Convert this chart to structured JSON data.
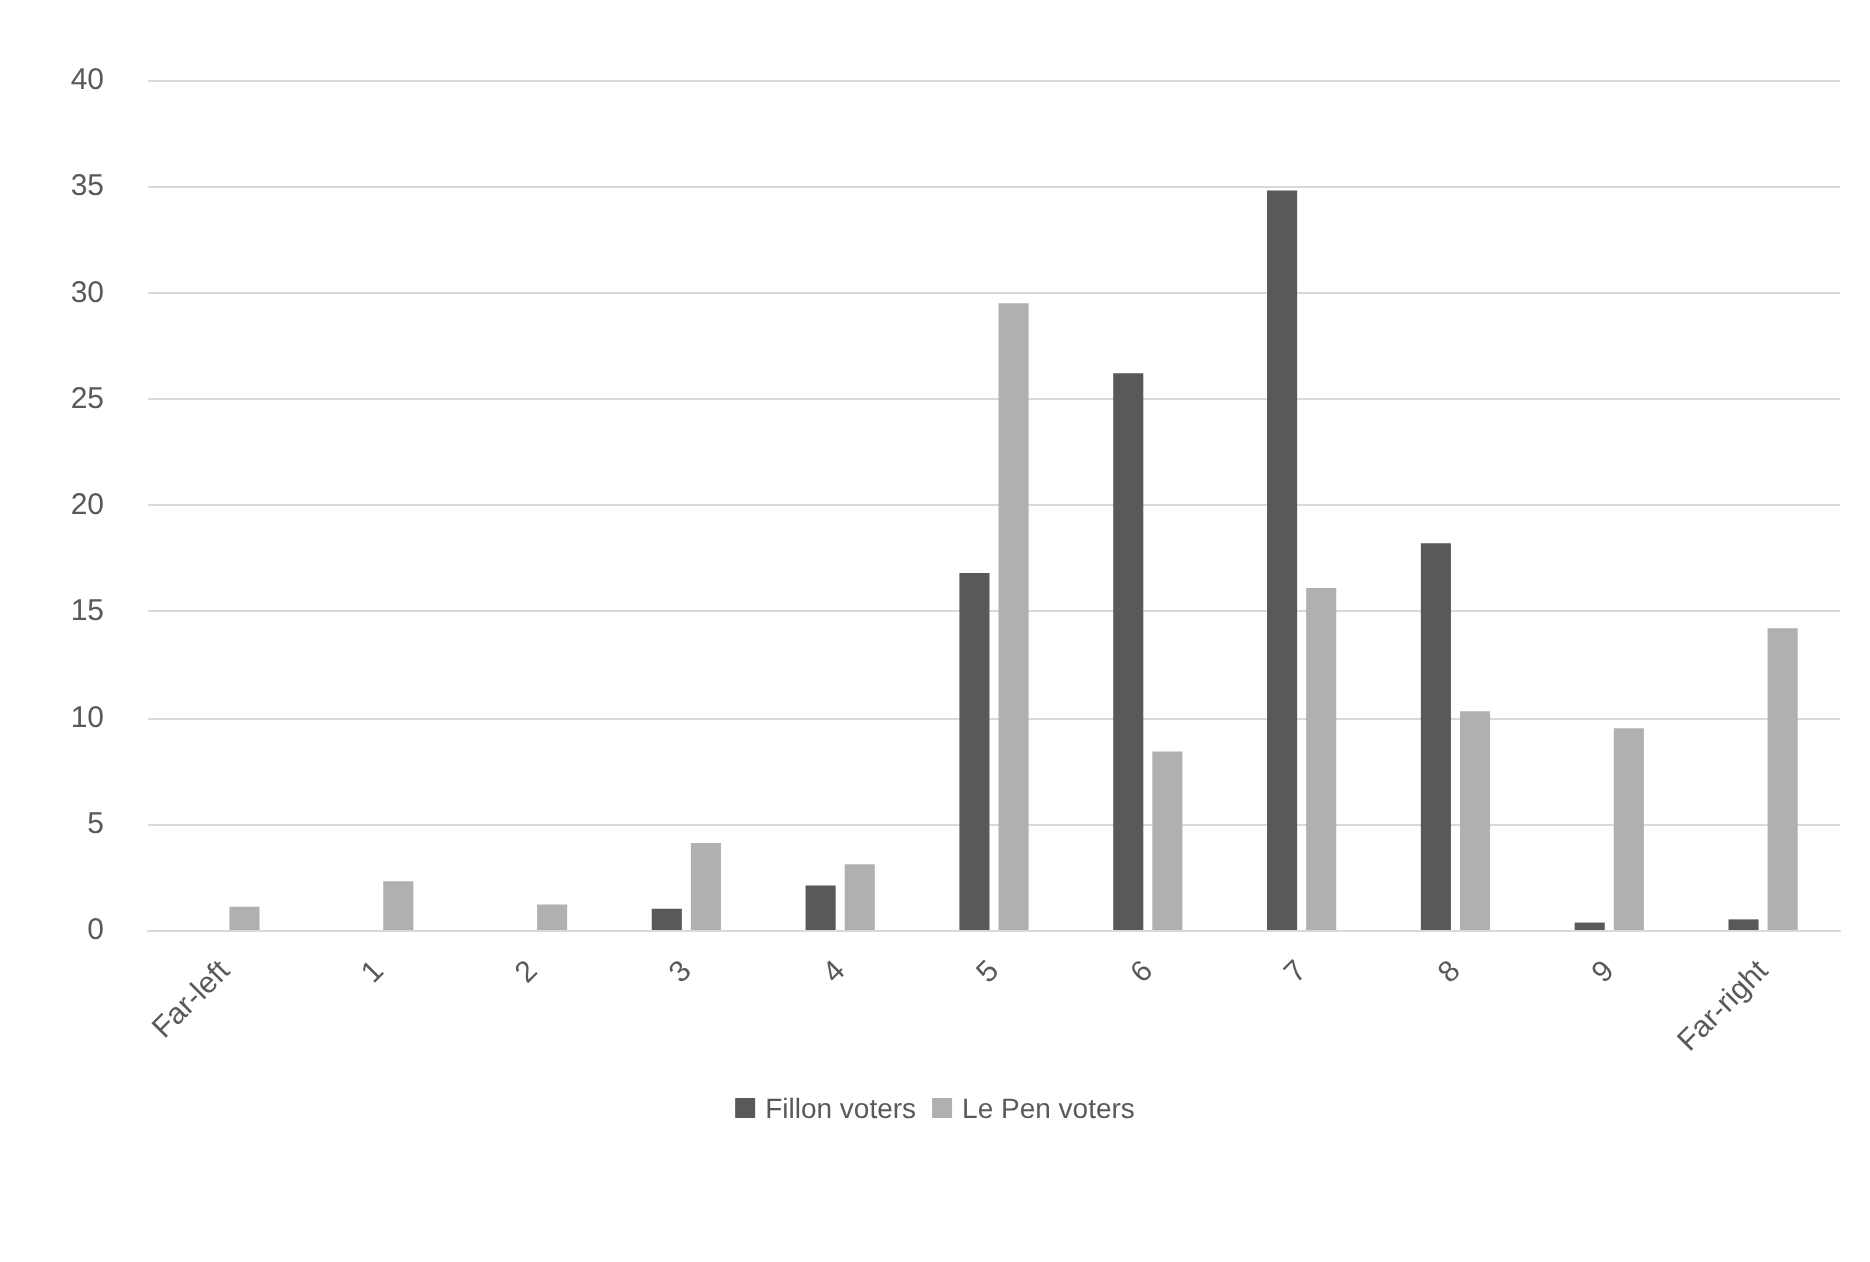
{
  "chart_data": {
    "type": "bar",
    "categories": [
      "Far-left",
      "1",
      "2",
      "3",
      "4",
      "5",
      "6",
      "7",
      "8",
      "9",
      "Far-right"
    ],
    "series": [
      {
        "name": "Fillon voters",
        "color": "#595959",
        "values": [
          0,
          0,
          0,
          1.0,
          2.1,
          16.8,
          26.2,
          34.8,
          18.2,
          0.35,
          0.5
        ]
      },
      {
        "name": "Le Pen voters",
        "color": "#b0b0b0",
        "values": [
          1.1,
          2.3,
          1.2,
          4.1,
          3.1,
          29.5,
          8.4,
          16.1,
          10.3,
          9.5,
          14.2
        ]
      }
    ],
    "ylim": [
      0,
      40
    ],
    "yticks": [
      0,
      5,
      10,
      15,
      20,
      25,
      30,
      35,
      40
    ],
    "grid": "y",
    "legend": "bottom"
  }
}
